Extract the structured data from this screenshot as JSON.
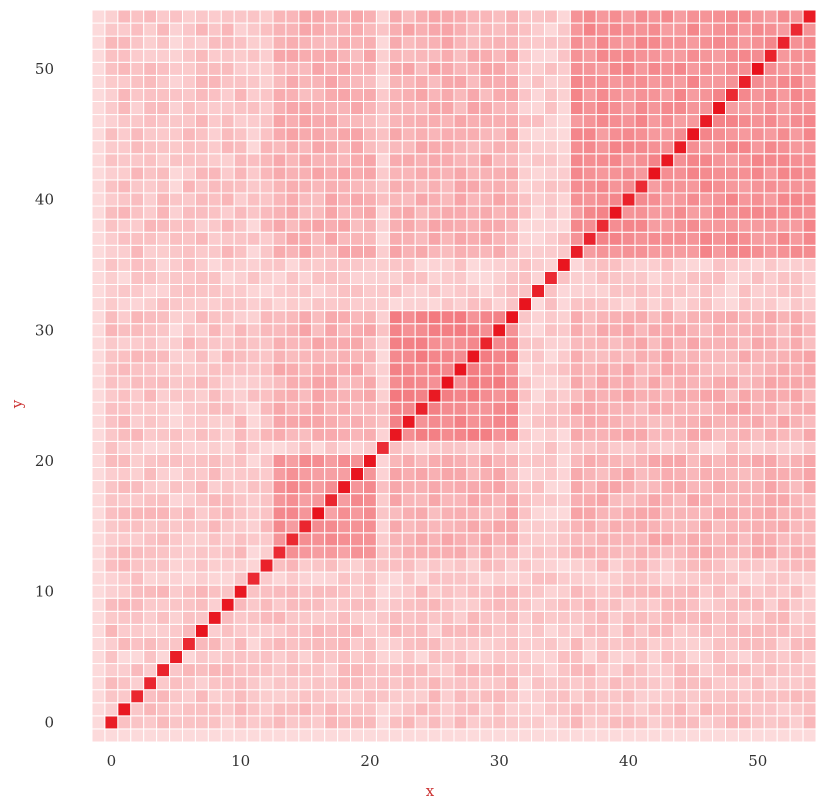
{
  "chart_data": {
    "type": "heatmap",
    "title": "",
    "xlabel": "x",
    "ylabel": "y",
    "x": [
      0,
      1,
      2,
      3,
      4,
      5,
      6,
      7,
      8,
      9,
      10,
      11,
      12,
      13,
      14,
      15,
      16,
      17,
      18,
      19,
      20,
      21,
      22,
      23,
      24,
      25,
      26,
      27,
      28,
      29,
      30,
      31,
      32,
      33,
      34,
      35,
      36,
      37,
      38,
      39,
      40,
      41,
      42,
      43,
      44,
      45,
      46,
      47,
      48,
      49,
      50,
      51,
      52,
      53,
      54
    ],
    "y": [
      0,
      1,
      2,
      3,
      4,
      5,
      6,
      7,
      8,
      9,
      10,
      11,
      12,
      13,
      14,
      15,
      16,
      17,
      18,
      19,
      20,
      21,
      22,
      23,
      24,
      25,
      26,
      27,
      28,
      29,
      30,
      31,
      32,
      33,
      34,
      35,
      36,
      37,
      38,
      39,
      40,
      41,
      42,
      43,
      44,
      45,
      46,
      47,
      48,
      49,
      50,
      51,
      52,
      53,
      54
    ],
    "xlim": [
      -1,
      54
    ],
    "ylim": [
      -1,
      54
    ],
    "x_ticks": [
      0,
      10,
      20,
      30,
      40,
      50
    ],
    "y_ticks": [
      0,
      10,
      20,
      30,
      40,
      50
    ],
    "x_tick_labels": [
      "0",
      "10",
      "20",
      "30",
      "40",
      "50"
    ],
    "y_tick_labels": [
      "0",
      "10",
      "20",
      "30",
      "40",
      "50"
    ],
    "value_range": [
      0,
      1
    ],
    "diagonal_value": 1.0,
    "background_value": 0.22,
    "clusters": [
      {
        "start": 13,
        "end": 20,
        "value": 0.42
      },
      {
        "start": 22,
        "end": 31,
        "value": 0.48
      },
      {
        "start": 36,
        "end": 54,
        "value": 0.44
      }
    ],
    "cross_cluster_value": 0.3,
    "light_rows": [
      5,
      11,
      21,
      32,
      33,
      34,
      35
    ],
    "light_row_value": 0.12,
    "colormap": [
      "#fff5f5",
      "#e8101a"
    ],
    "grid": true,
    "legend": "none",
    "colors": {
      "axis_title": "#cc3333",
      "tick_label": "#333333",
      "cell_border": "#ffffff"
    }
  }
}
